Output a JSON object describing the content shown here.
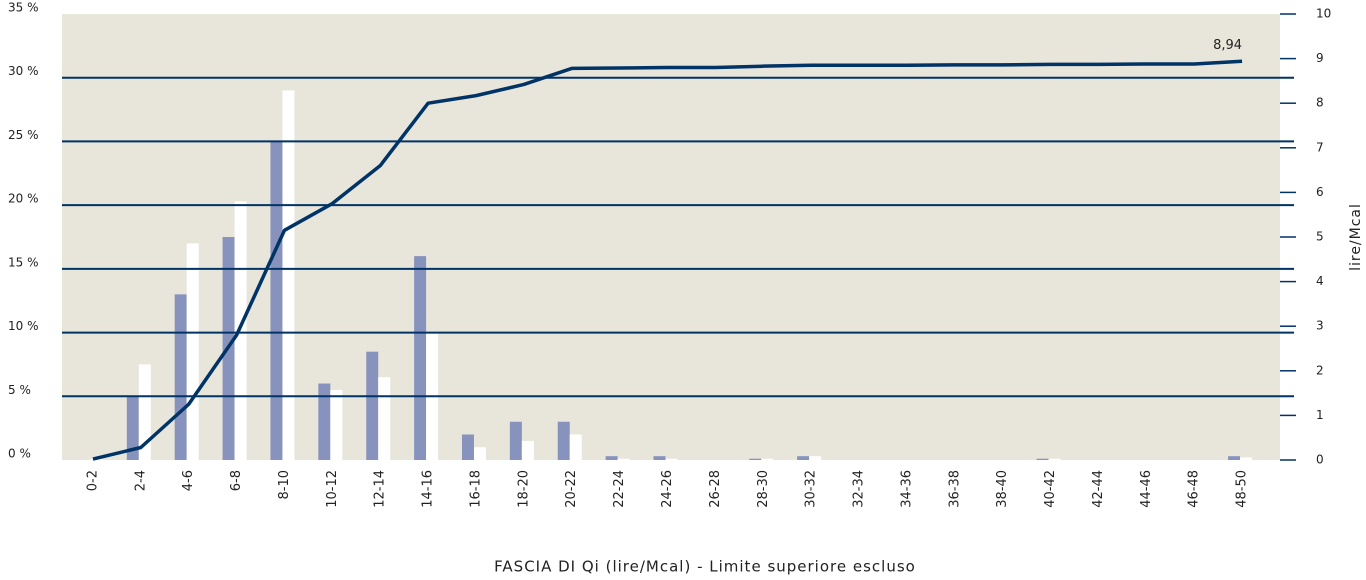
{
  "chart_data": {
    "type": "bar-line",
    "x_label": "FASCIA DI Qi (lire/Mcal) - Limite superiore escluso",
    "y2_label": "lire/Mcal",
    "categories": [
      "0-2",
      "2-4",
      "4-6",
      "6-8",
      "8-10",
      "10-12",
      "12-14",
      "14-16",
      "16-18",
      "18-20",
      "20-22",
      "22-24",
      "24-26",
      "26-28",
      "28-30",
      "30-32",
      "32-34",
      "34-36",
      "36-38",
      "38-40",
      "40-42",
      "42-44",
      "44-46",
      "46-48",
      "48-50"
    ],
    "series": [
      {
        "type": "bar",
        "color": "#8793bd",
        "values": [
          0,
          5,
          13,
          17.5,
          25,
          6,
          8.5,
          16,
          2,
          3,
          3,
          0.3,
          0.3,
          0,
          0.1,
          0.3,
          0,
          0,
          0,
          0,
          0.1,
          0,
          0,
          0,
          0.3
        ]
      },
      {
        "type": "bar",
        "color": "#ffffff",
        "values": [
          0.1,
          7.5,
          17,
          20.3,
          29,
          5.5,
          6.5,
          10,
          1,
          1.5,
          2,
          0.1,
          0.1,
          0,
          0.1,
          0.3,
          0,
          0,
          0,
          0,
          0.1,
          0,
          0,
          0,
          0.2
        ]
      },
      {
        "type": "line",
        "axis": "y2",
        "color": "#003366",
        "values": [
          0.02,
          0.28,
          1.25,
          2.8,
          5.15,
          5.75,
          6.6,
          8.0,
          8.17,
          8.42,
          8.78,
          8.79,
          8.8,
          8.8,
          8.83,
          8.85,
          8.85,
          8.85,
          8.86,
          8.86,
          8.87,
          8.87,
          8.88,
          8.88,
          8.94
        ],
        "value_labels": [
          null,
          null,
          null,
          null,
          null,
          null,
          null,
          null,
          null,
          null,
          null,
          null,
          null,
          null,
          null,
          null,
          null,
          null,
          null,
          null,
          null,
          null,
          null,
          null,
          "8,94"
        ]
      }
    ],
    "ylim": [
      0,
      35
    ],
    "yticks": [
      {
        "value": 0,
        "label": "0 %"
      },
      {
        "value": 5,
        "label": "5 %"
      },
      {
        "value": 10,
        "label": "10 %"
      },
      {
        "value": 15,
        "label": "15 %"
      },
      {
        "value": 20,
        "label": "20 %"
      },
      {
        "value": 25,
        "label": "25 %"
      },
      {
        "value": 30,
        "label": "30 %"
      },
      {
        "value": 35,
        "label": "35 %"
      }
    ],
    "y2lim": [
      0,
      10
    ],
    "y2ticks": [
      0,
      1,
      2,
      3,
      4,
      5,
      6,
      7,
      8,
      9,
      10
    ],
    "grid": true,
    "plot_background": "#e8e5da",
    "grid_color": "#003366"
  }
}
